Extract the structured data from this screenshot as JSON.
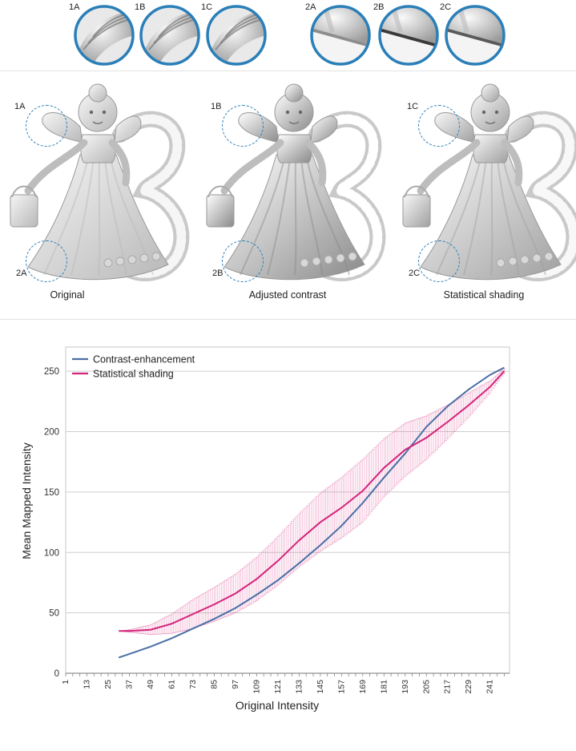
{
  "zoom_insets": [
    {
      "label": "1A"
    },
    {
      "label": "1B"
    },
    {
      "label": "1C"
    },
    {
      "label": "2A"
    },
    {
      "label": "2B"
    },
    {
      "label": "2C"
    }
  ],
  "panels": [
    {
      "caption": "Original",
      "tag_top": "1A",
      "tag_bottom": "2A"
    },
    {
      "caption": "Adjusted contrast",
      "tag_top": "1B",
      "tag_bottom": "2B"
    },
    {
      "caption": "Statistical shading",
      "tag_top": "1C",
      "tag_bottom": "2C"
    }
  ],
  "colors": {
    "contrast": "#4a6fa5",
    "statistical": "#d4237a",
    "inset_ring": "#2b7fb8",
    "grid": "#cfcfcf"
  },
  "chart_data": {
    "type": "line",
    "xlabel": "Original Intensity",
    "ylabel": "Mean Mapped Intensity",
    "xlim": [
      1,
      252
    ],
    "ylim": [
      0,
      270
    ],
    "yticks": [
      0,
      50,
      100,
      150,
      200,
      250
    ],
    "xticks": [
      1,
      13,
      25,
      37,
      49,
      61,
      73,
      85,
      97,
      109,
      121,
      133,
      145,
      157,
      169,
      181,
      193,
      205,
      217,
      229,
      241
    ],
    "legend": "top-left",
    "series": [
      {
        "name": "Contrast-enhancement",
        "x": [
          31,
          37,
          49,
          61,
          73,
          85,
          97,
          109,
          121,
          133,
          145,
          157,
          169,
          181,
          193,
          205,
          217,
          229,
          241,
          249
        ],
        "y": [
          13,
          16,
          22,
          29,
          37,
          45,
          54,
          65,
          77,
          91,
          106,
          122,
          141,
          162,
          182,
          204,
          221,
          235,
          247,
          253
        ]
      },
      {
        "name": "Statistical shading",
        "x": [
          31,
          37,
          49,
          61,
          73,
          85,
          97,
          109,
          121,
          133,
          145,
          157,
          169,
          181,
          193,
          205,
          217,
          229,
          241,
          249
        ],
        "y": [
          35,
          35,
          36,
          41,
          49,
          57,
          66,
          78,
          93,
          110,
          125,
          137,
          151,
          170,
          185,
          195,
          208,
          222,
          237,
          250
        ],
        "err": [
          0,
          1,
          4,
          8,
          12,
          14,
          16,
          18,
          20,
          22,
          24,
          25,
          26,
          24,
          22,
          18,
          14,
          10,
          5,
          2
        ]
      }
    ]
  }
}
